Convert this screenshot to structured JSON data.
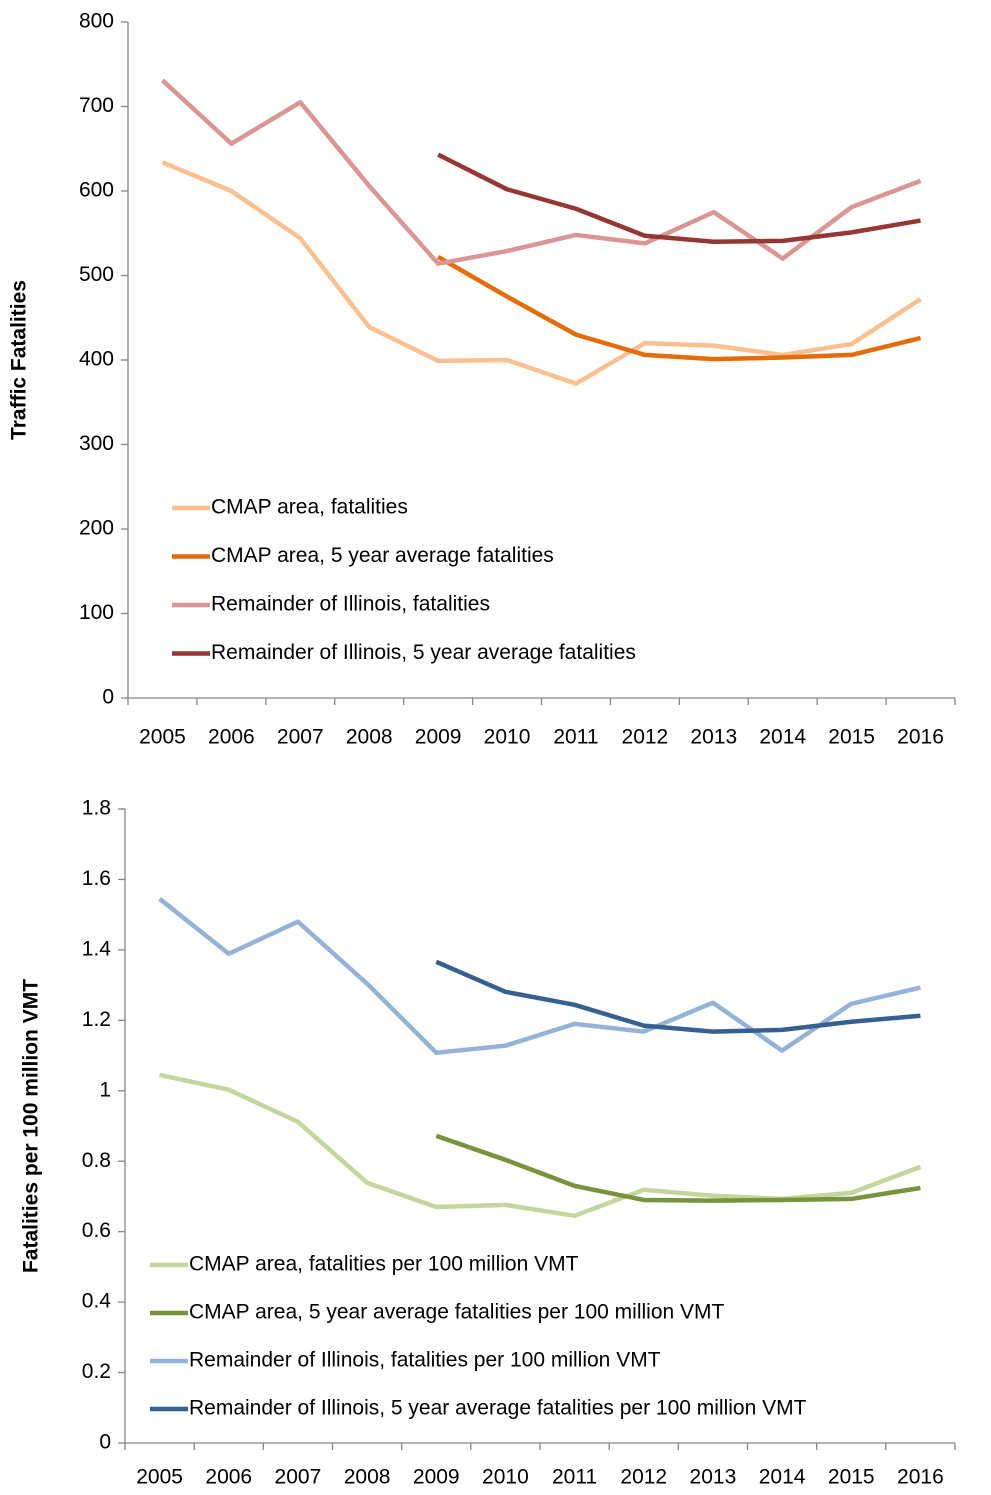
{
  "chart_data": [
    {
      "type": "line",
      "ylabel": "Traffic Fatalities",
      "categories": [
        "2005",
        "2006",
        "2007",
        "2008",
        "2009",
        "2010",
        "2011",
        "2012",
        "2013",
        "2014",
        "2015",
        "2016"
      ],
      "series": [
        {
          "name": "CMAP area, fatalities",
          "color": "#fac090",
          "values": [
            634,
            600,
            544,
            439,
            399,
            400,
            372,
            420,
            417,
            406,
            419,
            472
          ]
        },
        {
          "name": "CMAP area, 5 year average fatalities",
          "color": "#e46c0a",
          "values": [
            null,
            null,
            null,
            null,
            522,
            475,
            430,
            406,
            401,
            403,
            406,
            426
          ]
        },
        {
          "name": "Remainder of Illinois, fatalities",
          "color": "#d99694",
          "values": [
            731,
            656,
            705,
            606,
            514,
            529,
            548,
            538,
            575,
            520,
            581,
            612
          ]
        },
        {
          "name": "Remainder of Illinois, 5 year average fatalities",
          "color": "#953735",
          "values": [
            null,
            null,
            null,
            null,
            643,
            602,
            579,
            547,
            540,
            541,
            551,
            565
          ]
        }
      ],
      "ylim": [
        0,
        800
      ],
      "yticks": [
        0,
        100,
        200,
        300,
        400,
        500,
        600,
        700,
        800
      ],
      "grid": false,
      "legend": "lower left"
    },
    {
      "type": "line",
      "ylabel": "Fatalities per 100 million VMT",
      "categories": [
        "2005",
        "2006",
        "2007",
        "2008",
        "2009",
        "2010",
        "2011",
        "2012",
        "2013",
        "2014",
        "2015",
        "2016"
      ],
      "series": [
        {
          "name": "CMAP area, fatalities per 100 million VMT",
          "color": "#c3d69b",
          "values": [
            1.045,
            1.003,
            0.912,
            0.739,
            0.67,
            0.676,
            0.645,
            0.719,
            0.702,
            0.693,
            0.71,
            0.784
          ]
        },
        {
          "name": "CMAP area, 5 year average fatalities per 100 million VMT",
          "color": "#77933c",
          "values": [
            null,
            null,
            null,
            null,
            0.872,
            0.804,
            0.73,
            0.69,
            0.688,
            0.69,
            0.693,
            0.724
          ]
        },
        {
          "name": "Remainder of Illinois, fatalities per 100 million VMT",
          "color": "#95b3d7",
          "values": [
            1.545,
            1.389,
            1.48,
            1.304,
            1.108,
            1.128,
            1.19,
            1.168,
            1.25,
            1.114,
            1.247,
            1.293
          ]
        },
        {
          "name": "Remainder of Illinois, 5 year average fatalities per 100 million VMT",
          "color": "#376092",
          "values": [
            null,
            null,
            null,
            null,
            1.366,
            1.281,
            1.244,
            1.185,
            1.168,
            1.173,
            1.196,
            1.213
          ]
        }
      ],
      "ylim": [
        0,
        1.8
      ],
      "yticks": [
        0,
        0.2,
        0.4,
        0.6,
        0.8,
        1,
        1.2,
        1.4,
        1.6,
        1.8
      ],
      "grid": false,
      "legend": "lower left"
    }
  ]
}
